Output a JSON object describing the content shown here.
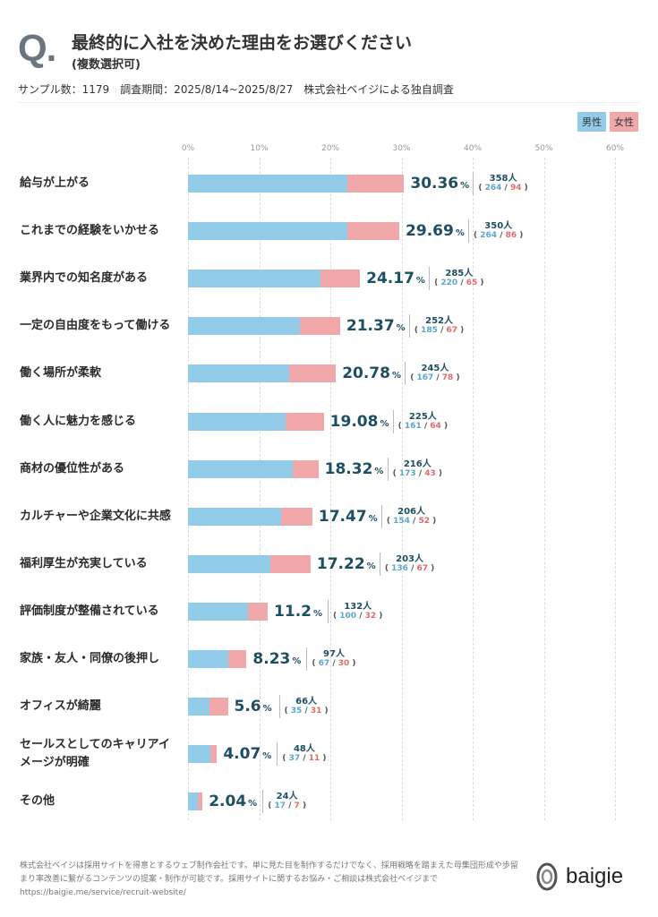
{
  "header": {
    "q": "Q.",
    "title": "最終的に入社を決めた理由をお選びください",
    "subtitle": "(複数選択可)",
    "meta": "サンプル数：1179　調査期間：2025/8/14~2025/8/27　株式会社ベイジによる独自調査"
  },
  "colors": {
    "male": "#92cce8",
    "female": "#f0a8aa",
    "value": "#1d4f61"
  },
  "chart_data": {
    "type": "bar",
    "orientation": "horizontal",
    "stacked": true,
    "legend": [
      "男性",
      "女性"
    ],
    "legend_position": "top-right",
    "xlim": [
      0,
      60
    ],
    "ticks": [
      "0%",
      "10%",
      "20%",
      "30%",
      "40%",
      "50%",
      "60%"
    ],
    "unit_pct": "%",
    "unit_people": "人",
    "rows": [
      {
        "label": "給与が上がる",
        "pct": "30.36",
        "total": "358",
        "male": "264",
        "female": "94"
      },
      {
        "label": "これまでの経験をいかせる",
        "pct": "29.69",
        "total": "350",
        "male": "264",
        "female": "86"
      },
      {
        "label": "業界内での知名度がある",
        "pct": "24.17",
        "total": "285",
        "male": "220",
        "female": "65"
      },
      {
        "label": "一定の自由度をもって働ける",
        "pct": "21.37",
        "total": "252",
        "male": "185",
        "female": "67"
      },
      {
        "label": "働く場所が柔軟",
        "pct": "20.78",
        "total": "245",
        "male": "167",
        "female": "78"
      },
      {
        "label": "働く人に魅力を感じる",
        "pct": "19.08",
        "total": "225",
        "male": "161",
        "female": "64"
      },
      {
        "label": "商材の優位性がある",
        "pct": "18.32",
        "total": "216",
        "male": "173",
        "female": "43"
      },
      {
        "label": "カルチャーや企業文化に共感",
        "pct": "17.47",
        "total": "206",
        "male": "154",
        "female": "52"
      },
      {
        "label": "福利厚生が充実している",
        "pct": "17.22",
        "total": "203",
        "male": "136",
        "female": "67"
      },
      {
        "label": "評価制度が整備されている",
        "pct": "11.2",
        "total": "132",
        "male": "100",
        "female": "32"
      },
      {
        "label": "家族・友人・同僚の後押し",
        "pct": "8.23",
        "total": "97",
        "male": "67",
        "female": "30"
      },
      {
        "label": "オフィスが綺麗",
        "pct": "5.6",
        "total": "66",
        "male": "35",
        "female": "31"
      },
      {
        "label": "セールスとしてのキャリアイメージが明確",
        "pct": "4.07",
        "total": "48",
        "male": "37",
        "female": "11"
      },
      {
        "label": "その他",
        "pct": "2.04",
        "total": "24",
        "male": "17",
        "female": "7"
      }
    ]
  },
  "footer": {
    "text1": "株式会社ベイジは採用サイトを得意とするウェブ制作会社です。単に見た目を制作するだけでなく、採用戦略を踏まえた母集団形成や歩留まり率改善に繋がるコンテンツの提案・制作が可能です。採用サイトに関するお悩み・ご相談は株式会社ベイジまで",
    "url": "https://baigie.me/service/recruit-website/",
    "logo": "baigie"
  }
}
